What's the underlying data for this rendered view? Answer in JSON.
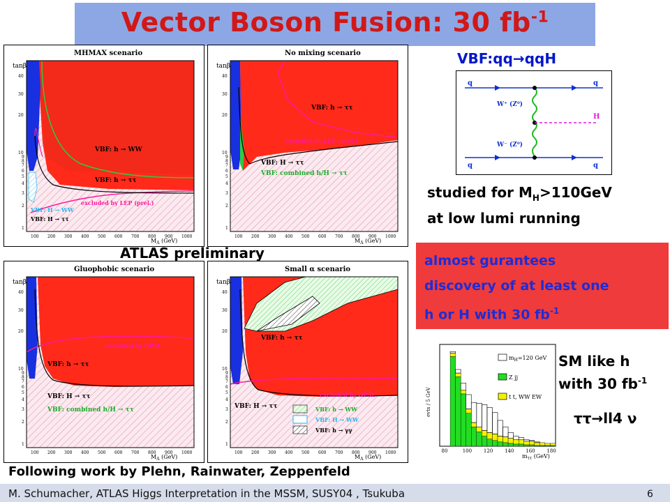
{
  "slide": {
    "title_main": "Vector Boson Fusion: 30 fb",
    "title_sup": "-1",
    "atlas_preliminary": "ATLAS preliminary",
    "following_work": "Following work by Plehn, Rainwater, Zeppenfeld",
    "vbf_label_pre": "VBF:qq",
    "vbf_label_arrow": "→",
    "vbf_label_post": "qqH",
    "studied_line1_pre": "studied for M",
    "studied_line1_sub": "H",
    "studied_line1_post": ">110GeV",
    "studied_line2": "at low lumi running",
    "red_box_line1": "almost gurantees",
    "red_box_line2": "discovery of at least one",
    "red_box_line3_pre": "h or H with 30 fb",
    "red_box_line3_sup": "-1",
    "sm_like_line1": "SM like h",
    "sm_like_line2_pre": "with 30 fb",
    "sm_like_line2_sup": "-1",
    "tau_ll": "ττ→ll4 ν",
    "footer": "M. Schumacher,    ATLAS Higgs Interpretation in the  MSSM, SUSY04 , Tsukuba",
    "page_number": "6"
  },
  "panels": {
    "mhmax": {
      "title": "MHMAX scenario",
      "ylabel": "tanβ",
      "xlabel": "M",
      "xlabel_sub": "A",
      "xlabel_unit": "(GeV)",
      "label_ww": "VBF: h → WW",
      "label_tt": "VBF: h → ττ",
      "label_lep": "excluded by LEP (prel.)",
      "label_H_ww": "VBF: H → WW",
      "label_H_tt": "VBF: H → ττ"
    },
    "nomix": {
      "title": "No mixing scenario",
      "ylabel": "tanβ",
      "xlabel": "M",
      "xlabel_sub": "A",
      "xlabel_unit": "(GeV)",
      "label_tt": "VBF: h → ττ",
      "label_lep": "excluded by LEP (prel.)",
      "label_H_tt": "VBF: H → ττ",
      "label_comb": "VBF: combined h/H → ττ"
    },
    "gluo": {
      "title": "Gluophobic scenario",
      "ylabel": "tanβ",
      "xlabel": "M",
      "xlabel_sub": "A",
      "xlabel_unit": "(GeV)",
      "label_opal": "excluded by OPAL",
      "label_tt": "VBF: h → ττ",
      "label_H_tt": "VBF: H → ττ",
      "label_comb": "VBF: combined h/H → ττ"
    },
    "small": {
      "title": "Small α scenario",
      "ylabel": "tanβ",
      "xlabel": "M",
      "xlabel_sub": "A",
      "xlabel_unit": "(GeV)",
      "label_tt": "VBF: h → ττ",
      "label_opal": "excluded by OPAL",
      "label_H_tt": "VBF: H → ττ",
      "label_ww": "VBF: h → WW",
      "label_H_ww": "VBF: H → WW",
      "label_gg": "VBF: h → γγ"
    },
    "x_ticks": [
      "100",
      "200",
      "300",
      "400",
      "500",
      "600",
      "700",
      "800",
      "900",
      "1000"
    ],
    "y_ticks": [
      "1",
      "2",
      "3",
      "4",
      "5",
      "6",
      "7",
      "8",
      "9",
      "10",
      "20",
      "30",
      "40"
    ]
  },
  "feynman": {
    "q_tl": "q",
    "q_tr": "q",
    "q_bl": "q",
    "q_br": "q",
    "w_top": "W⁺ (Z⁰)",
    "w_bot": "W⁻ (Z⁰)",
    "higgs": "H"
  },
  "histogram": {
    "ylabel": "evts / 5 GeV",
    "xlabel": "m",
    "xlabel_sub": "ττ",
    "xlabel_unit": "(GeV)",
    "legend_signal": "m",
    "legend_signal_sub": "H",
    "legend_signal_val": "=120 GeV",
    "legend_zjj": "Z jj",
    "legend_tt": "t t, WW EW",
    "x_ticks": [
      "80",
      "100",
      "120",
      "140",
      "160",
      "180"
    ],
    "chart_data": {
      "type": "bar",
      "x": [
        80,
        85,
        90,
        95,
        100,
        105,
        110,
        115,
        120,
        125,
        130,
        135,
        140,
        145,
        150,
        155,
        160,
        165,
        170,
        175,
        180
      ],
      "series": [
        {
          "name": "Z jj",
          "values": [
            0,
            12.5,
            9.7,
            7.3,
            4.6,
            2.7,
            2.0,
            1.4,
            1.0,
            0.8,
            0.6,
            0.5,
            0.4,
            0.3,
            0.3,
            0.2,
            0.2,
            0.1,
            0.1,
            0.1,
            0.1
          ]
        },
        {
          "name": "t t, WW EW",
          "values": [
            0,
            0.5,
            0.5,
            0.5,
            0.6,
            0.6,
            0.7,
            0.8,
            0.9,
            0.9,
            0.8,
            0.8,
            0.7,
            0.6,
            0.6,
            0.5,
            0.5,
            0.4,
            0.4,
            0.3,
            0.3
          ]
        },
        {
          "name": "m_H=120 GeV",
          "values": [
            0,
            0.2,
            0.5,
            1.0,
            2.0,
            2.8,
            3.3,
            3.6,
            3.5,
            3.0,
            2.2,
            1.4,
            0.8,
            0.5,
            0.3,
            0.2,
            0.1,
            0.1,
            0,
            0,
            0
          ]
        }
      ],
      "colors": {
        "zjj": "#22dd22",
        "tt": "#f2f200",
        "signal": "#ffffff"
      }
    }
  }
}
